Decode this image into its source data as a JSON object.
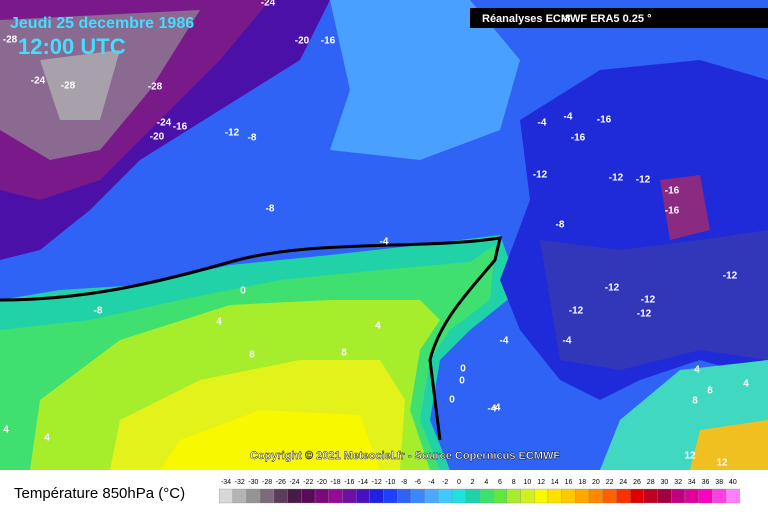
{
  "header": {
    "date": "Jeudi 25 decembre 1986",
    "time": "12:00 UTC",
    "source": "Réanalyses ECMWF ERA5 0.25 °"
  },
  "copyright": "Copyright © 2021 Meteociel.fr - Source Copernicus ECMWF",
  "legend": {
    "title": "Température 850hPa (°C)",
    "ticks": [
      -34,
      -32,
      -30,
      -28,
      -26,
      -24,
      -22,
      -20,
      -18,
      -16,
      -14,
      -12,
      -10,
      -8,
      -6,
      -4,
      -2,
      0,
      2,
      4,
      6,
      8,
      10,
      12,
      14,
      16,
      18,
      20,
      22,
      24,
      26,
      28,
      30,
      32,
      34,
      36,
      38,
      40
    ]
  },
  "contour_labels": [
    "-24",
    "-28",
    "-20",
    "-16",
    "-24",
    "-28",
    "-28",
    "-24",
    "-16",
    "-20",
    "-12",
    "-8",
    "-8",
    "-4",
    "0",
    "-8",
    "4",
    "4",
    "8",
    "8",
    "0",
    "-4",
    "-4",
    "-4",
    "-4",
    "-16",
    "-16",
    "-12",
    "-12",
    "-12",
    "-16",
    "-16",
    "-8",
    "-12",
    "-12",
    "-12",
    "-12",
    "-12",
    "-4",
    "0",
    "0",
    "-4",
    "4",
    "4",
    "8",
    "8",
    "12",
    "12",
    "4",
    "4",
    "-8"
  ]
}
